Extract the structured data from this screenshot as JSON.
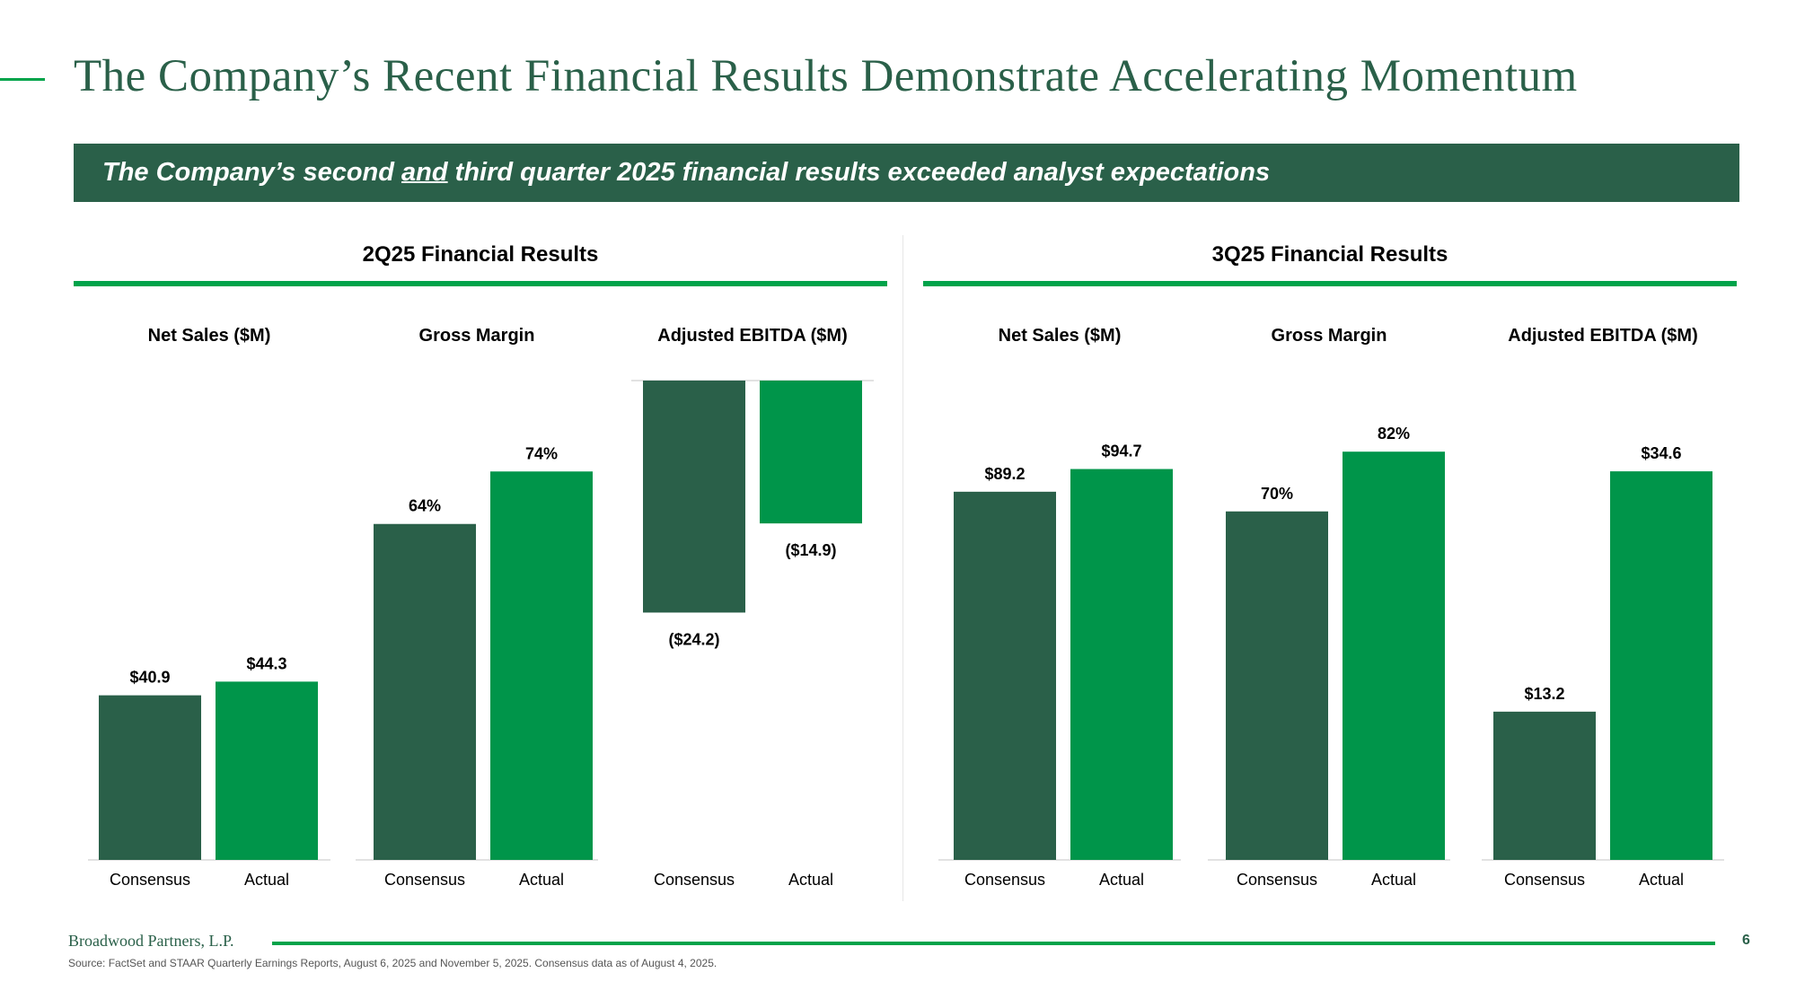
{
  "title": "The Company’s Recent Financial Results Demonstrate Accelerating Momentum",
  "banner": {
    "before": "The Company’s second ",
    "emphasis": "and",
    "after": " third quarter 2025 financial results exceeded analyst expectations"
  },
  "panels": [
    {
      "title": "2Q25 Financial Results"
    },
    {
      "title": "3Q25 Financial Results"
    }
  ],
  "colors": {
    "consensus": "#2a6049",
    "actual": "#00954a",
    "accent": "#00a34a"
  },
  "chart_data": [
    {
      "type": "bar",
      "panel": "2Q25 Financial Results",
      "title": "Net Sales ($M)",
      "categories": [
        "Consensus",
        "Actual"
      ],
      "values": [
        40.9,
        44.3
      ],
      "labels": [
        "$40.9",
        "$44.3"
      ],
      "ylim": [
        0,
        120
      ]
    },
    {
      "type": "bar",
      "panel": "2Q25 Financial Results",
      "title": "Gross Margin",
      "categories": [
        "Consensus",
        "Actual"
      ],
      "values": [
        64,
        74
      ],
      "labels": [
        "64%",
        "74%"
      ],
      "ylim": [
        0,
        92
      ]
    },
    {
      "type": "bar",
      "panel": "2Q25 Financial Results",
      "title": "Adjusted EBITDA ($M)",
      "categories": [
        "Consensus",
        "Actual"
      ],
      "values": [
        -24.2,
        -14.9
      ],
      "labels": [
        "($24.2)",
        "($14.9)"
      ],
      "ylim": [
        -50,
        0
      ]
    },
    {
      "type": "bar",
      "panel": "3Q25 Financial Results",
      "title": "Net Sales ($M)",
      "categories": [
        "Consensus",
        "Actual"
      ],
      "values": [
        89.2,
        94.7
      ],
      "labels": [
        "$89.2",
        "$94.7"
      ],
      "ylim": [
        0,
        117
      ]
    },
    {
      "type": "bar",
      "panel": "3Q25 Financial Results",
      "title": "Gross Margin",
      "categories": [
        "Consensus",
        "Actual"
      ],
      "values": [
        70,
        82
      ],
      "labels": [
        "70%",
        "82%"
      ],
      "ylim": [
        0,
        97
      ]
    },
    {
      "type": "bar",
      "panel": "3Q25 Financial Results",
      "title": "Adjusted EBITDA ($M)",
      "categories": [
        "Consensus",
        "Actual"
      ],
      "values": [
        13.2,
        34.6
      ],
      "labels": [
        "$13.2",
        "$34.6"
      ],
      "ylim": [
        0,
        43
      ]
    }
  ],
  "footer": {
    "firm": "Broadwood Partners, L.P.",
    "page": "6",
    "source": "Source: FactSet and STAAR Quarterly Earnings Reports, August 6, 2025 and November 5, 2025. Consensus data as of August 4, 2025."
  }
}
